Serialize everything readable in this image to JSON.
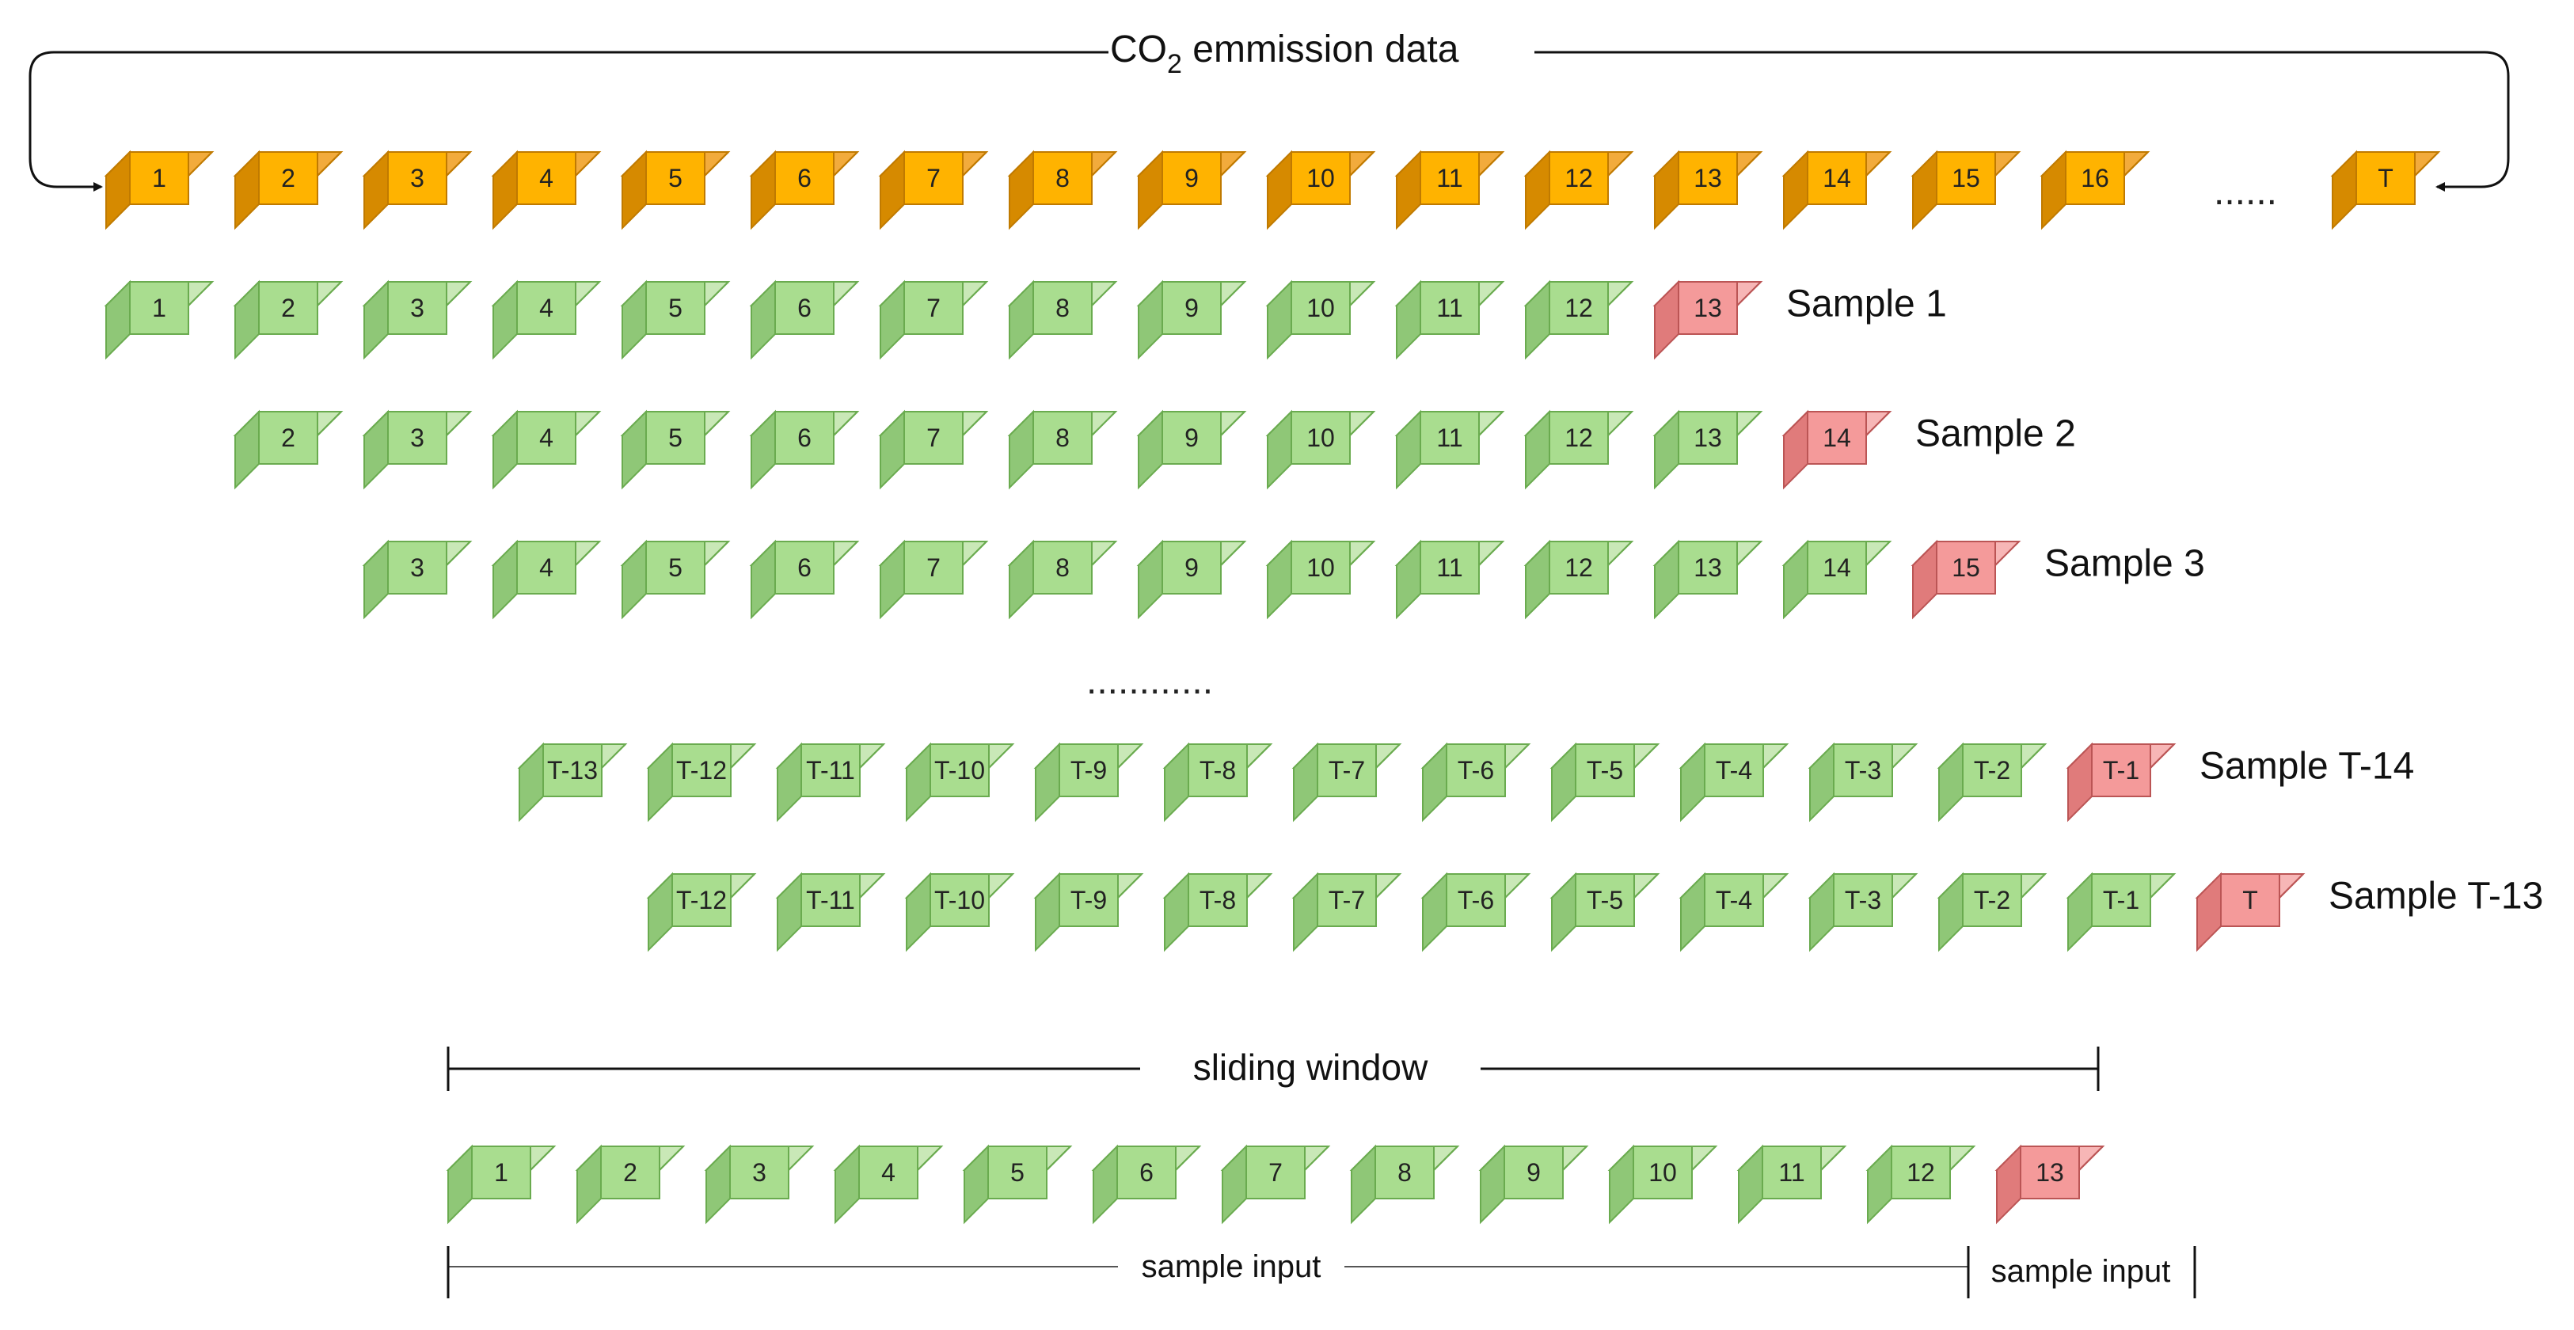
{
  "title": {
    "prefix": "CO",
    "subscript": "2",
    "suffix": " emmission data"
  },
  "colors": {
    "orange_front": "#ffb300",
    "orange_top": "#f2ab3c",
    "orange_side": "#d68a00",
    "orange_stroke": "#c07a00",
    "green_front": "#a9dd8f",
    "green_top": "#c9e8b7",
    "green_side": "#8fc777",
    "green_stroke": "#6aab4f",
    "red_front": "#f49a9a",
    "red_top": "#f7b6b6",
    "red_side": "#e07b7b",
    "red_stroke": "#bb5555",
    "line": "#111111"
  },
  "data_row": {
    "labels": [
      "1",
      "2",
      "3",
      "4",
      "5",
      "6",
      "7",
      "8",
      "9",
      "10",
      "11",
      "12",
      "13",
      "14",
      "15",
      "16"
    ],
    "ellipsis": "......",
    "last": "T"
  },
  "samples": [
    {
      "name": "Sample 1",
      "inputs": [
        "1",
        "2",
        "3",
        "4",
        "5",
        "6",
        "7",
        "8",
        "9",
        "10",
        "11",
        "12"
      ],
      "target": "13"
    },
    {
      "name": "Sample 2",
      "inputs": [
        "2",
        "3",
        "4",
        "5",
        "6",
        "7",
        "8",
        "9",
        "10",
        "11",
        "12",
        "13"
      ],
      "target": "14"
    },
    {
      "name": "Sample 3",
      "inputs": [
        "3",
        "4",
        "5",
        "6",
        "7",
        "8",
        "9",
        "10",
        "11",
        "12",
        "13",
        "14"
      ],
      "target": "15"
    },
    {
      "name": "Sample T-14",
      "inputs": [
        "T-13",
        "T-12",
        "T-11",
        "T-10",
        "T-9",
        "T-8",
        "T-7",
        "T-6",
        "T-5",
        "T-4",
        "T-3",
        "T-2"
      ],
      "target": "T-1"
    },
    {
      "name": "Sample T-13",
      "inputs": [
        "T-12",
        "T-11",
        "T-10",
        "T-9",
        "T-8",
        "T-7",
        "T-6",
        "T-5",
        "T-4",
        "T-3",
        "T-2",
        "T-1"
      ],
      "target": "T"
    }
  ],
  "middle_ellipsis": "............",
  "window": {
    "label": "sliding window",
    "inputs": [
      "1",
      "2",
      "3",
      "4",
      "5",
      "6",
      "7",
      "8",
      "9",
      "10",
      "11",
      "12"
    ],
    "target": "13",
    "input_label": "sample input",
    "target_label": "sample input"
  }
}
